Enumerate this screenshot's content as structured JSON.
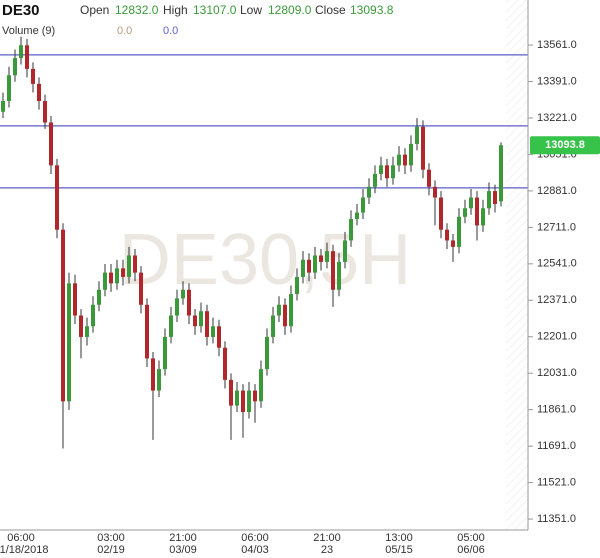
{
  "chart_data": {
    "type": "candlestick",
    "header": {
      "symbol": "DE30",
      "fields": [
        {
          "label": "Open",
          "value": "12832.0"
        },
        {
          "label": "High",
          "value": "13107.0"
        },
        {
          "label": "Low",
          "value": "12809.0"
        },
        {
          "label": "Close",
          "value": "13093.8"
        }
      ],
      "volume": {
        "label": "Volume (9)",
        "values": [
          "0.0",
          "0.0"
        ]
      }
    },
    "watermark": "DE30,5H",
    "up_color": "#3a9a3a",
    "down_color": "#b3262b",
    "line_color": "#5b5fc7",
    "ylim": [
      11300,
      13771
    ],
    "yticks": [
      {
        "value": 11351,
        "label": "11351.0"
      },
      {
        "value": 11521,
        "label": "11521.0"
      },
      {
        "value": 11691,
        "label": "11691.0"
      },
      {
        "value": 11861,
        "label": "11861.0"
      },
      {
        "value": 12031,
        "label": "12031.0"
      },
      {
        "value": 12201,
        "label": "12201.0"
      },
      {
        "value": 12371,
        "label": "12371.0"
      },
      {
        "value": 12541,
        "label": "12541.0"
      },
      {
        "value": 12711,
        "label": "12711.0"
      },
      {
        "value": 12881,
        "label": "12881.0"
      },
      {
        "value": 13051,
        "label": "13051.0"
      },
      {
        "value": 13221,
        "label": "13221.0"
      },
      {
        "value": 13391,
        "label": "13391.0"
      },
      {
        "value": 13561,
        "label": "13561.0"
      }
    ],
    "hlines": [
      13515,
      13184,
      12895
    ],
    "categories": [
      null,
      null,
      null,
      {
        "time": "06:00",
        "date": "01/18/2018"
      },
      null,
      null,
      null,
      null,
      null,
      null,
      null,
      null,
      null,
      null,
      null,
      null,
      null,
      null,
      {
        "time": "03:00",
        "date": "02/19"
      },
      null,
      null,
      null,
      null,
      null,
      null,
      null,
      null,
      null,
      null,
      null,
      {
        "time": "21:00",
        "date": "03/09"
      },
      null,
      null,
      null,
      null,
      null,
      null,
      null,
      null,
      null,
      null,
      null,
      {
        "time": "06:00",
        "date": "04/03"
      },
      null,
      null,
      null,
      null,
      null,
      null,
      null,
      null,
      null,
      null,
      null,
      {
        "time": "21:00",
        "date": "23"
      },
      null,
      null,
      null,
      null,
      null,
      null,
      null,
      null,
      null,
      null,
      null,
      {
        "time": "13:00",
        "date": "05/15"
      },
      null,
      null,
      null,
      null,
      null,
      null,
      null,
      null,
      null,
      null,
      null,
      {
        "time": "05:00",
        "date": "06/06"
      },
      null,
      null,
      null,
      null,
      null
    ],
    "open": [
      13250,
      13300,
      13420,
      13500,
      13560,
      13450,
      13380,
      13300,
      13200,
      13000,
      12700,
      11900,
      12450,
      12300,
      12200,
      12250,
      12350,
      12420,
      12500,
      12450,
      12520,
      12480,
      12580,
      12500,
      12350,
      12100,
      11950,
      12050,
      12200,
      12300,
      12380,
      12420,
      12300,
      12250,
      12320,
      12200,
      12250,
      12150,
      12000,
      11880,
      11950,
      11850,
      11950,
      11900,
      12050,
      12200,
      12300,
      12350,
      12250,
      12400,
      12480,
      12560,
      12500,
      12580,
      12550,
      12600,
      12420,
      12550,
      12650,
      12750,
      12780,
      12850,
      12900,
      12960,
      13000,
      12940,
      13000,
      13050,
      13000,
      13100,
      13180,
      12980,
      12900,
      12850,
      12700,
      12650,
      12620,
      12760,
      12800,
      12850,
      12720,
      12800,
      12880,
      12832
    ],
    "high": [
      13340,
      13460,
      13540,
      13600,
      13590,
      13480,
      13410,
      13330,
      13230,
      13030,
      12730,
      12500,
      12490,
      12330,
      12290,
      12390,
      12460,
      12540,
      12540,
      12560,
      12560,
      12620,
      12610,
      12530,
      12380,
      12130,
      12090,
      12240,
      12340,
      12420,
      12460,
      12450,
      12330,
      12360,
      12350,
      12290,
      12280,
      12180,
      12030,
      11990,
      11980,
      11990,
      11980,
      12090,
      12240,
      12340,
      12390,
      12380,
      12440,
      12520,
      12600,
      12590,
      12620,
      12610,
      12640,
      12630,
      12590,
      12690,
      12790,
      12820,
      12890,
      12940,
      13000,
      13040,
      13030,
      13040,
      13090,
      13080,
      13140,
      13220,
      13210,
      13010,
      12930,
      12880,
      12730,
      12680,
      12800,
      12840,
      12890,
      12880,
      12840,
      12920,
      12910,
      13107
    ],
    "low": [
      13220,
      13270,
      13390,
      13470,
      13410,
      13340,
      13260,
      13170,
      12960,
      12660,
      11680,
      11860,
      12260,
      12100,
      12160,
      12220,
      12320,
      12390,
      12410,
      12420,
      12440,
      12450,
      12460,
      12310,
      12060,
      11720,
      11920,
      12020,
      12170,
      12270,
      12350,
      12260,
      12210,
      12220,
      12160,
      12170,
      12110,
      11960,
      11720,
      11850,
      11730,
      11820,
      11800,
      11870,
      12020,
      12170,
      12270,
      12210,
      12220,
      12370,
      12450,
      12460,
      12470,
      12510,
      12520,
      12340,
      12390,
      12520,
      12620,
      12720,
      12750,
      12820,
      12870,
      12930,
      12900,
      12910,
      12970,
      12960,
      12970,
      13070,
      12940,
      12860,
      12720,
      12660,
      12610,
      12550,
      12590,
      12730,
      12770,
      12650,
      12690,
      12770,
      12780,
      12809
    ],
    "close": [
      13300,
      13420,
      13500,
      13560,
      13450,
      13380,
      13300,
      13200,
      13000,
      12700,
      11900,
      12450,
      12300,
      12200,
      12250,
      12350,
      12420,
      12500,
      12450,
      12520,
      12480,
      12580,
      12500,
      12350,
      12100,
      11950,
      12050,
      12200,
      12300,
      12380,
      12420,
      12300,
      12250,
      12320,
      12200,
      12250,
      12150,
      12000,
      11880,
      11950,
      11850,
      11950,
      11900,
      12050,
      12200,
      12300,
      12350,
      12250,
      12400,
      12480,
      12560,
      12500,
      12580,
      12550,
      12600,
      12420,
      12550,
      12650,
      12750,
      12780,
      12850,
      12900,
      12960,
      13000,
      12940,
      13000,
      13050,
      13000,
      13100,
      13180,
      12980,
      12900,
      12850,
      12700,
      12650,
      12620,
      12760,
      12800,
      12850,
      12720,
      12800,
      12880,
      12820,
      13093.8
    ]
  }
}
